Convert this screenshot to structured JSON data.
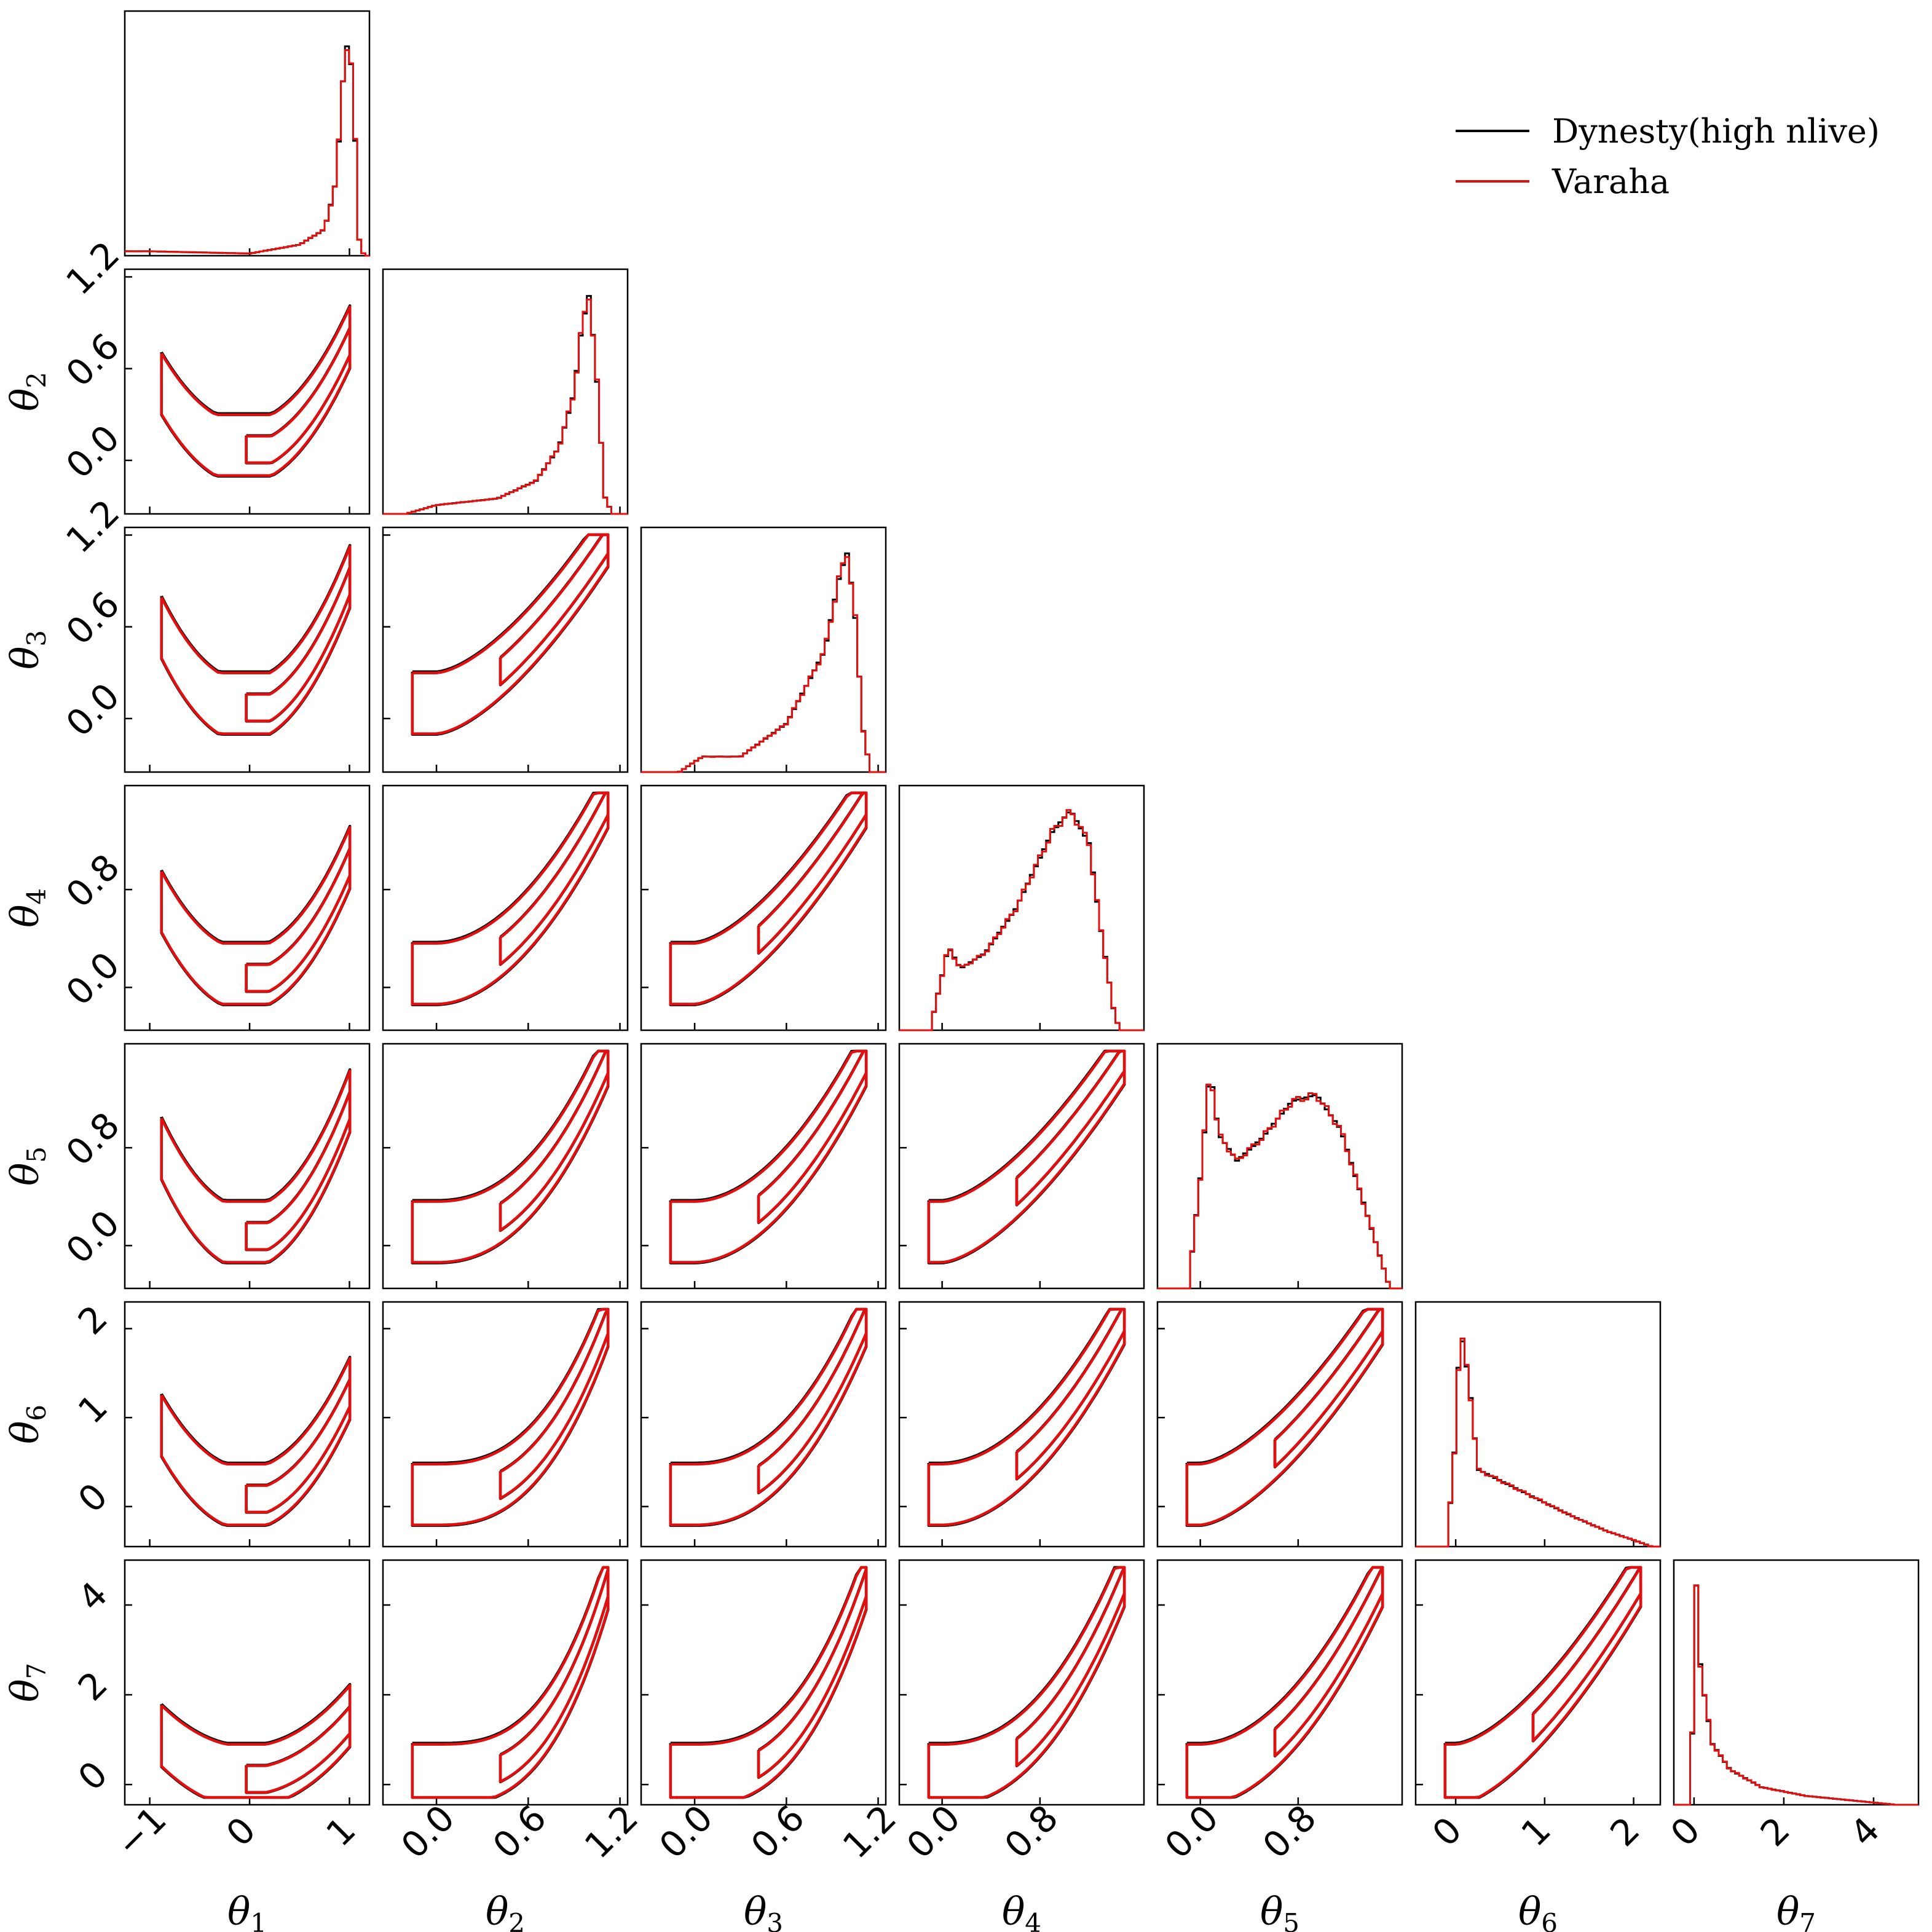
{
  "chart_data": {
    "type": "corner",
    "parameters": [
      {
        "label": "θ",
        "sub": "1",
        "range": [
          -1.25,
          1.2
        ],
        "ticks": [
          -1,
          0,
          1
        ],
        "tick_labels": [
          "−1",
          "0",
          "1"
        ]
      },
      {
        "label": "θ",
        "sub": "2",
        "range": [
          -0.35,
          1.25
        ],
        "ticks": [
          0.0,
          0.6,
          1.2
        ],
        "tick_labels": [
          "0.0",
          "0.6",
          "1.2"
        ]
      },
      {
        "label": "θ",
        "sub": "3",
        "range": [
          -0.35,
          1.25
        ],
        "ticks": [
          0.0,
          0.6,
          1.2
        ],
        "tick_labels": [
          "0.0",
          "0.6",
          "1.2"
        ]
      },
      {
        "label": "θ",
        "sub": "4",
        "range": [
          -0.35,
          1.65
        ],
        "ticks": [
          0.0,
          0.8
        ],
        "tick_labels": [
          "0.0",
          "0.8"
        ]
      },
      {
        "label": "θ",
        "sub": "5",
        "range": [
          -0.35,
          1.65
        ],
        "ticks": [
          0.0,
          0.8
        ],
        "tick_labels": [
          "0.0",
          "0.8"
        ]
      },
      {
        "label": "θ",
        "sub": "6",
        "range": [
          -0.45,
          2.3
        ],
        "ticks": [
          0,
          1,
          2
        ],
        "tick_labels": [
          "0",
          "1",
          "2"
        ]
      },
      {
        "label": "θ",
        "sub": "7",
        "range": [
          -0.45,
          5.0
        ],
        "ticks": [
          0,
          2,
          4
        ],
        "tick_labels": [
          "0",
          "2",
          "4"
        ]
      }
    ],
    "legend": {
      "placement": "top-right",
      "entries": [
        {
          "name": "Dynesty(high nlive)",
          "color": "#000000"
        },
        {
          "name": "Varaha",
          "color": "#e01010"
        }
      ]
    },
    "marginals": [
      [
        [
          -1.0,
          0.02
        ],
        [
          0.0,
          0.01
        ],
        [
          0.5,
          0.05
        ],
        [
          0.75,
          0.12
        ],
        [
          0.85,
          0.3
        ],
        [
          0.9,
          0.55
        ],
        [
          0.95,
          0.9
        ],
        [
          1.0,
          1.0
        ],
        [
          1.05,
          0.6
        ],
        [
          1.1,
          0.05
        ],
        [
          1.15,
          0.0
        ]
      ],
      [
        [
          -0.2,
          0.0
        ],
        [
          0.0,
          0.04
        ],
        [
          0.4,
          0.07
        ],
        [
          0.65,
          0.15
        ],
        [
          0.8,
          0.3
        ],
        [
          0.9,
          0.55
        ],
        [
          0.95,
          0.85
        ],
        [
          1.0,
          1.0
        ],
        [
          1.05,
          0.6
        ],
        [
          1.1,
          0.08
        ],
        [
          1.15,
          0.0
        ]
      ],
      [
        [
          -0.1,
          0.0
        ],
        [
          0.05,
          0.07
        ],
        [
          0.3,
          0.07
        ],
        [
          0.6,
          0.22
        ],
        [
          0.85,
          0.55
        ],
        [
          0.95,
          0.9
        ],
        [
          1.0,
          1.0
        ],
        [
          1.05,
          0.7
        ],
        [
          1.1,
          0.2
        ],
        [
          1.15,
          0.0
        ]
      ],
      [
        [
          -0.1,
          0.0
        ],
        [
          0.0,
          0.25
        ],
        [
          0.05,
          0.38
        ],
        [
          0.15,
          0.28
        ],
        [
          0.35,
          0.35
        ],
        [
          0.6,
          0.55
        ],
        [
          0.9,
          0.9
        ],
        [
          1.05,
          1.0
        ],
        [
          1.2,
          0.85
        ],
        [
          1.3,
          0.45
        ],
        [
          1.4,
          0.1
        ],
        [
          1.45,
          0.0
        ]
      ],
      [
        [
          -0.1,
          0.0
        ],
        [
          0.0,
          0.5
        ],
        [
          0.08,
          1.0
        ],
        [
          0.15,
          0.7
        ],
        [
          0.3,
          0.58
        ],
        [
          0.5,
          0.68
        ],
        [
          0.75,
          0.85
        ],
        [
          0.95,
          0.88
        ],
        [
          1.15,
          0.72
        ],
        [
          1.3,
          0.45
        ],
        [
          1.45,
          0.18
        ],
        [
          1.55,
          0.0
        ]
      ],
      [
        [
          -0.1,
          0.0
        ],
        [
          0.0,
          0.5
        ],
        [
          0.05,
          1.0
        ],
        [
          0.15,
          0.75
        ],
        [
          0.25,
          0.35
        ],
        [
          0.5,
          0.3
        ],
        [
          0.9,
          0.22
        ],
        [
          1.3,
          0.14
        ],
        [
          1.7,
          0.07
        ],
        [
          2.0,
          0.03
        ],
        [
          2.2,
          0.0
        ]
      ],
      [
        [
          -0.1,
          0.0
        ],
        [
          0.0,
          0.55
        ],
        [
          0.05,
          1.0
        ],
        [
          0.15,
          0.6
        ],
        [
          0.4,
          0.28
        ],
        [
          0.8,
          0.16
        ],
        [
          1.5,
          0.08
        ],
        [
          2.5,
          0.04
        ],
        [
          3.5,
          0.02
        ],
        [
          4.5,
          0.0
        ]
      ]
    ]
  }
}
